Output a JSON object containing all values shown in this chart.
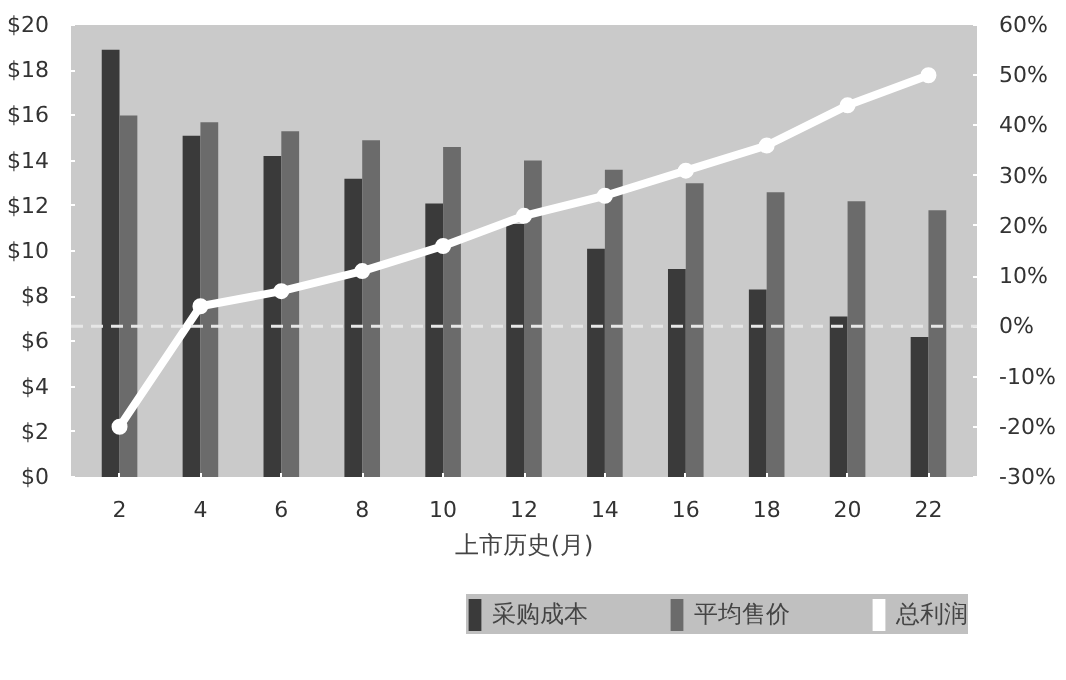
{
  "chart_data": {
    "type": "bar",
    "xlabel": "上市历史(月)",
    "categories": [
      "2",
      "4",
      "6",
      "8",
      "10",
      "12",
      "14",
      "16",
      "18",
      "20",
      "22"
    ],
    "series": [
      {
        "name": "采购成本",
        "color": "#3a3a3a",
        "values": [
          18.9,
          15.1,
          14.2,
          13.2,
          12.1,
          11.2,
          10.1,
          9.2,
          8.3,
          7.1,
          6.2
        ]
      },
      {
        "name": "平均售价",
        "color": "#6b6b6b",
        "values": [
          16.0,
          15.7,
          15.3,
          14.9,
          14.6,
          14.0,
          13.6,
          13.0,
          12.6,
          12.2,
          11.8
        ]
      },
      {
        "name": "总利润",
        "color": "#ffffff",
        "type": "line",
        "axis": "y2",
        "values": [
          -20,
          4,
          7,
          11,
          16,
          22,
          26,
          31,
          36,
          44,
          50
        ]
      }
    ],
    "ylim": [
      0,
      20
    ],
    "yticks": [
      {
        "value": 0,
        "label": "$0"
      },
      {
        "value": 2,
        "label": "$2"
      },
      {
        "value": 4,
        "label": "$4"
      },
      {
        "value": 6,
        "label": "$6"
      },
      {
        "value": 8,
        "label": "$8"
      },
      {
        "value": 10,
        "label": "$10"
      },
      {
        "value": 12,
        "label": "$12"
      },
      {
        "value": 14,
        "label": "$14"
      },
      {
        "value": 16,
        "label": "$16"
      },
      {
        "value": 18,
        "label": "$18"
      },
      {
        "value": 20,
        "label": "$20"
      }
    ],
    "y2lim": [
      -30,
      60
    ],
    "y2ticks": [
      {
        "value": -30,
        "label": "-30%"
      },
      {
        "value": -20,
        "label": "-20%"
      },
      {
        "value": -10,
        "label": "-10%"
      },
      {
        "value": 0,
        "label": "0%"
      },
      {
        "value": 10,
        "label": "10%"
      },
      {
        "value": 20,
        "label": "20%"
      },
      {
        "value": 30,
        "label": "30%"
      },
      {
        "value": 40,
        "label": "40%"
      },
      {
        "value": 50,
        "label": "50%"
      },
      {
        "value": 60,
        "label": "60%"
      }
    ],
    "ref_lines": [
      {
        "axis": "y2",
        "value": 0,
        "color": "#e6e6e6",
        "line_style": "dashed"
      }
    ],
    "marker": "circle",
    "grid": false,
    "legend": "bottom"
  }
}
